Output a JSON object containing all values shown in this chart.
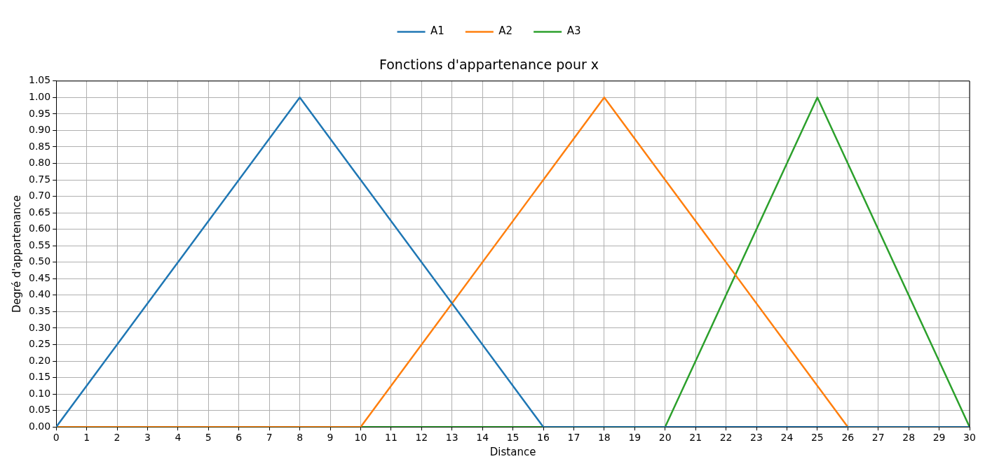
{
  "chart_data": {
    "type": "line",
    "title": "Fonctions d'appartenance pour x",
    "xlabel": "Distance",
    "ylabel": "Degré d'appartenance",
    "series": [
      {
        "name": "A1",
        "color": "#1f77b4",
        "x": [
          0,
          8,
          16,
          30
        ],
        "values": [
          0,
          1,
          0,
          0
        ]
      },
      {
        "name": "A2",
        "color": "#ff7f0e",
        "x": [
          0,
          10,
          18,
          26,
          30
        ],
        "values": [
          0,
          0,
          1,
          0,
          0
        ]
      },
      {
        "name": "A3",
        "color": "#2ca02c",
        "x": [
          0,
          20,
          25,
          30
        ],
        "values": [
          0,
          0,
          1,
          0
        ]
      }
    ],
    "xlim": [
      0,
      30
    ],
    "xticks": [
      0,
      1,
      2,
      3,
      4,
      5,
      6,
      7,
      8,
      9,
      10,
      11,
      12,
      13,
      14,
      15,
      16,
      17,
      18,
      19,
      20,
      21,
      22,
      23,
      24,
      25,
      26,
      27,
      28,
      29,
      30
    ],
    "ylim": [
      0,
      1.05
    ],
    "yticks": [
      {
        "value": 0,
        "label": "0.00"
      },
      {
        "value": 0.05,
        "label": "0.05"
      },
      {
        "value": 0.1,
        "label": "0.10"
      },
      {
        "value": 0.15,
        "label": "0.15"
      },
      {
        "value": 0.2,
        "label": "0.20"
      },
      {
        "value": 0.25,
        "label": "0.25"
      },
      {
        "value": 0.3,
        "label": "0.30"
      },
      {
        "value": 0.35,
        "label": "0.35"
      },
      {
        "value": 0.4,
        "label": "0.40"
      },
      {
        "value": 0.45,
        "label": "0.45"
      },
      {
        "value": 0.5,
        "label": "0.50"
      },
      {
        "value": 0.55,
        "label": "0.55"
      },
      {
        "value": 0.6,
        "label": "0.60"
      },
      {
        "value": 0.65,
        "label": "0.65"
      },
      {
        "value": 0.7,
        "label": "0.70"
      },
      {
        "value": 0.75,
        "label": "0.75"
      },
      {
        "value": 0.8,
        "label": "0.80"
      },
      {
        "value": 0.85,
        "label": "0.85"
      },
      {
        "value": 0.9,
        "label": "0.90"
      },
      {
        "value": 0.95,
        "label": "0.95"
      },
      {
        "value": 1,
        "label": "1.00"
      },
      {
        "value": 1.05,
        "label": "1.05"
      }
    ],
    "grid": true,
    "legend": "top",
    "marker": "none",
    "line_style": "solid"
  }
}
